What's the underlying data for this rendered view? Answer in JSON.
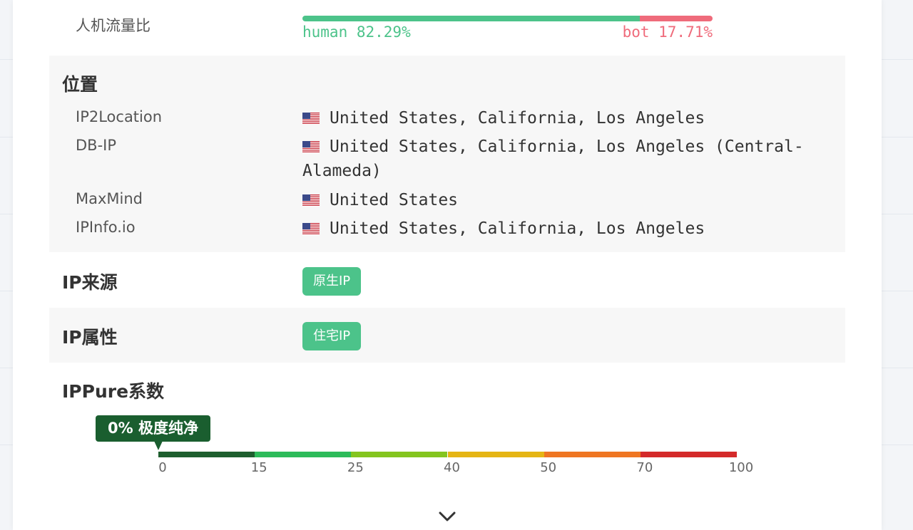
{
  "traffic": {
    "label": "人机流量比",
    "human": {
      "value": 82.29,
      "label": "human 82.29%"
    },
    "bot": {
      "value": 17.71,
      "label": "bot 17.71%"
    }
  },
  "location": {
    "title": "位置",
    "rows": [
      {
        "source": "IP2Location",
        "location": "United States, California, Los Angeles"
      },
      {
        "source": "DB-IP",
        "location": "United States, California, Los Angeles (Central-Alameda)"
      },
      {
        "source": "MaxMind",
        "location": "United States"
      },
      {
        "source": "IPInfo.io",
        "location": "United States, California, Los Angeles"
      }
    ]
  },
  "ip_source": {
    "label": "IP来源",
    "tag": "原生IP"
  },
  "ip_type": {
    "label": "IP属性",
    "tag": "住宅IP"
  },
  "ippure": {
    "label": "IPPure系数",
    "score": {
      "value": 0,
      "label": "0% 极度纯净"
    },
    "ticks": [
      0,
      15,
      25,
      40,
      50,
      70,
      100
    ],
    "colors": [
      "#1e5e2e",
      "#2dbb5a",
      "#84c51f",
      "#e5b514",
      "#ef7622",
      "#d42a2a"
    ]
  }
}
